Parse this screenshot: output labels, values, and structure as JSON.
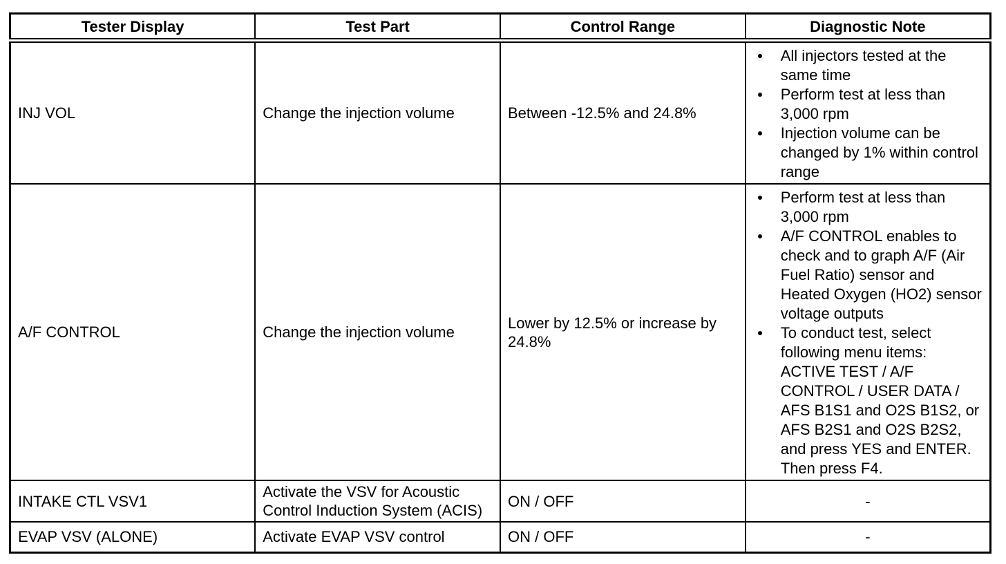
{
  "table": {
    "columns": [
      "Tester Display",
      "Test Part",
      "Control Range",
      "Diagnostic Note"
    ],
    "rows": [
      {
        "tester_display": "INJ VOL",
        "test_part": "Change the injection volume",
        "control_range": "Between -12.5% and 24.8%",
        "notes": [
          "All injectors tested at the same time",
          "Perform test at less than 3,000 rpm",
          "Injection volume can be changed by 1% within control range"
        ]
      },
      {
        "tester_display": "A/F CONTROL",
        "test_part": "Change the injection volume",
        "control_range": "Lower by 12.5% or increase by 24.8%",
        "notes": [
          "Perform test at less than 3,000 rpm",
          "A/F CONTROL enables to check and to graph A/F (Air Fuel Ratio) sensor and Heated Oxygen (HO2) sensor voltage outputs",
          "To conduct test, select following menu items: ACTIVE TEST / A/F CONTROL / USER DATA / AFS B1S1 and O2S B1S2, or AFS B2S1 and O2S B2S2, and press YES and ENTER. Then press F4."
        ]
      },
      {
        "tester_display": "INTAKE CTL VSV1",
        "test_part": "Activate the VSV for Acoustic Control Induction System (ACIS)",
        "control_range": "ON / OFF",
        "note_dash": "-"
      },
      {
        "tester_display": "EVAP VSV (ALONE)",
        "test_part": "Activate EVAP VSV control",
        "control_range": "ON / OFF",
        "note_dash": "-"
      }
    ]
  }
}
